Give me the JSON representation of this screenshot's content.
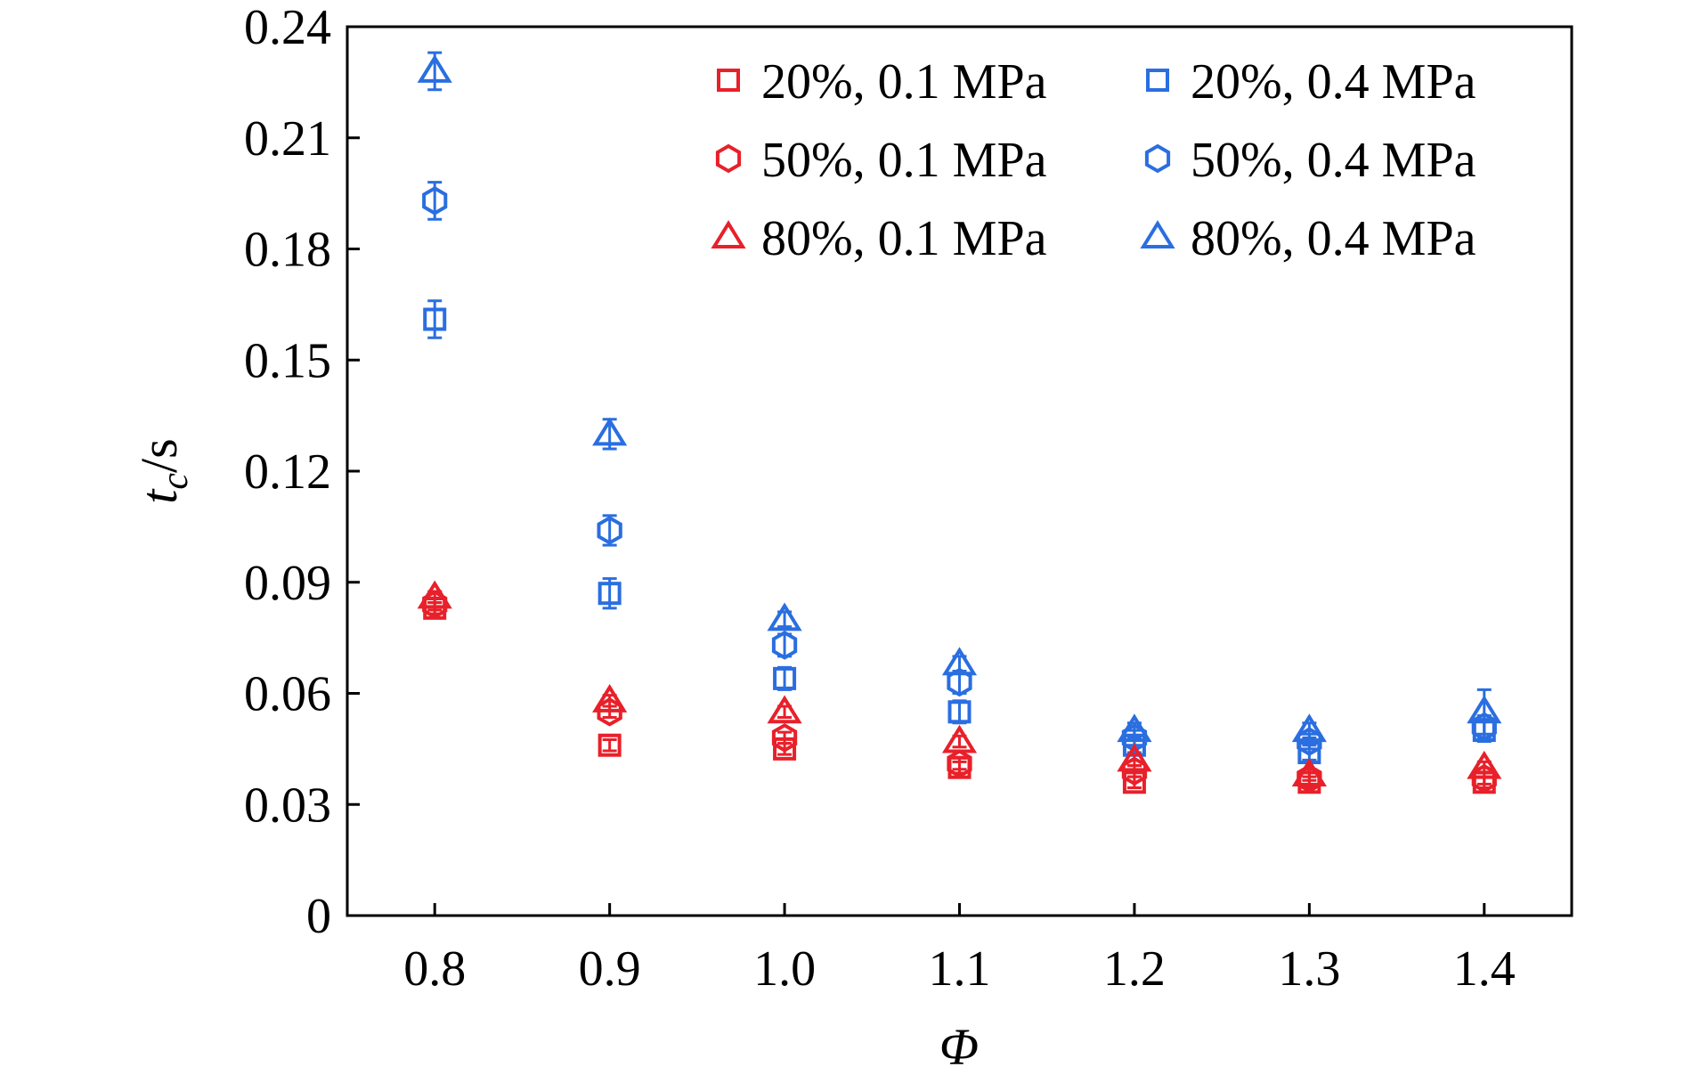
{
  "chart_data": {
    "type": "scatter",
    "x": [
      0.8,
      0.9,
      1.0,
      1.1,
      1.2,
      1.3,
      1.4
    ],
    "xlim": [
      0.75,
      1.45
    ],
    "ylim": [
      0,
      0.24
    ],
    "xticks": [
      "0.8",
      "0.9",
      "1.0",
      "1.1",
      "1.2",
      "1.3",
      "1.4"
    ],
    "yticks": [
      "0",
      "0.03",
      "0.06",
      "0.09",
      "0.12",
      "0.15",
      "0.18",
      "0.21",
      "0.24"
    ],
    "xlabel": "Φ",
    "ylabel": {
      "main": "t",
      "sub": "c",
      "unit": "/s"
    },
    "grid": false,
    "legend_position": "top-right",
    "series": [
      {
        "name": "20%, 0.1 MPa",
        "color": "#e8202a",
        "marker": "square",
        "values": [
          0.083,
          0.046,
          0.045,
          0.04,
          0.036,
          0.036,
          0.036
        ],
        "errors": [
          0.0015,
          0.0015,
          0.0015,
          0.0015,
          0.0015,
          0.0015,
          0.0015
        ]
      },
      {
        "name": "20%, 0.4 MPa",
        "color": "#2a6ee0",
        "marker": "square",
        "values": [
          0.161,
          0.087,
          0.064,
          0.055,
          0.046,
          0.044,
          0.05
        ],
        "errors": [
          0.005,
          0.004,
          0.003,
          0.003,
          0.002,
          0.002,
          0.003
        ]
      },
      {
        "name": "50%, 0.1 MPa",
        "color": "#e8202a",
        "marker": "hexagon",
        "values": [
          0.084,
          0.055,
          0.048,
          0.041,
          0.039,
          0.037,
          0.037
        ],
        "errors": [
          0.0015,
          0.0015,
          0.0015,
          0.0015,
          0.0015,
          0.0015,
          0.0015
        ]
      },
      {
        "name": "50%, 0.4 MPa",
        "color": "#2a6ee0",
        "marker": "hexagon",
        "values": [
          0.193,
          0.104,
          0.073,
          0.063,
          0.048,
          0.047,
          0.051
        ],
        "errors": [
          0.005,
          0.004,
          0.003,
          0.003,
          0.002,
          0.002,
          0.003
        ]
      },
      {
        "name": "80%, 0.1 MPa",
        "color": "#e8202a",
        "marker": "triangle",
        "values": [
          0.086,
          0.058,
          0.055,
          0.047,
          0.042,
          0.038,
          0.04
        ],
        "errors": [
          0.0015,
          0.0015,
          0.0015,
          0.0015,
          0.0015,
          0.0015,
          0.0015
        ]
      },
      {
        "name": "80%, 0.4 MPa",
        "color": "#2a6ee0",
        "marker": "triangle",
        "values": [
          0.228,
          0.13,
          0.08,
          0.068,
          0.05,
          0.05,
          0.055
        ],
        "errors": [
          0.005,
          0.004,
          0.002,
          0.002,
          0.002,
          0.002,
          0.006
        ]
      }
    ]
  }
}
